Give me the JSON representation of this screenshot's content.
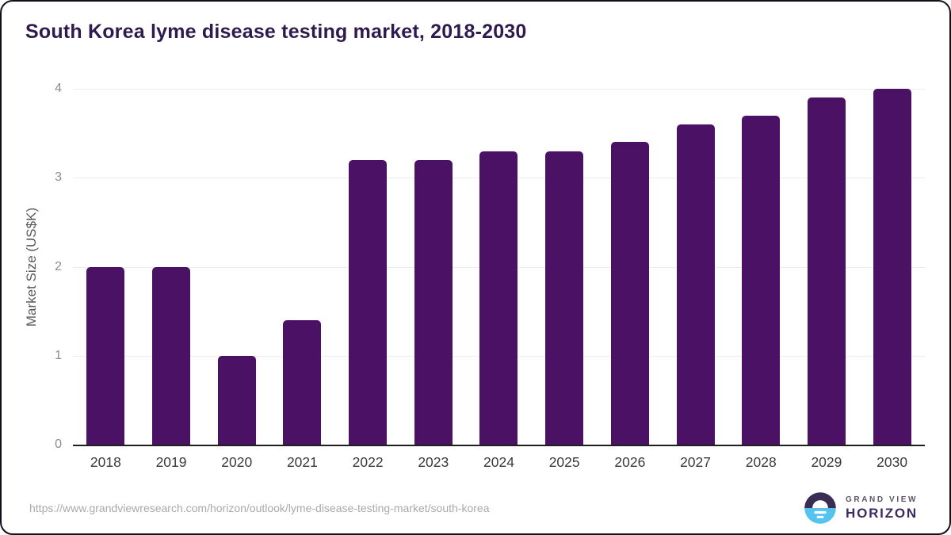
{
  "chart_data": {
    "type": "bar",
    "title": "South Korea lyme disease testing market, 2018-2030",
    "xlabel": "",
    "ylabel": "Market Size (US$K)",
    "categories": [
      "2018",
      "2019",
      "2020",
      "2021",
      "2022",
      "2023",
      "2024",
      "2025",
      "2026",
      "2027",
      "2028",
      "2029",
      "2030"
    ],
    "values": [
      2.0,
      2.0,
      1.0,
      1.4,
      3.2,
      3.2,
      3.3,
      3.3,
      3.4,
      3.6,
      3.7,
      3.9,
      4.0
    ],
    "ylim": [
      0,
      4
    ],
    "yticks": [
      0,
      1,
      2,
      3,
      4
    ],
    "grid": true,
    "legend": "none",
    "bar_color": "#4a1164"
  },
  "footer": {
    "source_url": "https://www.grandviewresearch.com/horizon/outlook/lyme-disease-testing-market/south-korea",
    "logo": {
      "brand_top": "GRAND VIEW",
      "brand_bottom": "HORIZON"
    }
  },
  "colors": {
    "title": "#2f1a4e",
    "bar": "#4a1164",
    "gridline": "#ececec",
    "axis_line": "#1f1f1f",
    "tick_label": "#8c8c8c",
    "x_label": "#3b3b3b",
    "y_axis_title": "#595959",
    "url_text": "#a9a9a9",
    "logo_navy": "#3a2d55",
    "logo_blue": "#56c3ee"
  }
}
